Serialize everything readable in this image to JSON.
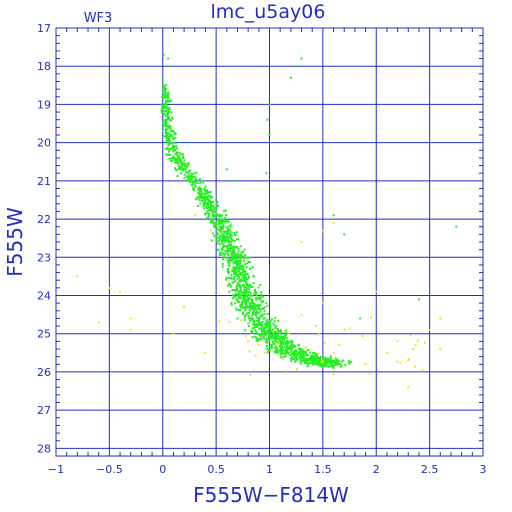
{
  "chart_data": {
    "type": "scatter",
    "title": "lmc_u5ay06",
    "corner_label": "WF3",
    "xlabel": "F555W−F814W",
    "ylabel": "F555W",
    "xlim": [
      -1,
      3
    ],
    "ylim": [
      17,
      28.2
    ],
    "y_inverted": true,
    "grid": true,
    "x_ticks": [
      -1,
      -0.5,
      0,
      0.5,
      1,
      1.5,
      2,
      2.5,
      3
    ],
    "x_tick_labels": [
      "−1",
      "−0.5",
      "0",
      "0.5",
      "1",
      "1.5",
      "2",
      "2.5",
      "3"
    ],
    "y_ticks": [
      17,
      18,
      19,
      20,
      21,
      22,
      23,
      24,
      25,
      26,
      27,
      28
    ],
    "y_tick_labels": [
      "17",
      "18",
      "19",
      "20",
      "21",
      "22",
      "23",
      "24",
      "25",
      "26",
      "27",
      "28"
    ],
    "colors": {
      "axis": "#1f2fc4",
      "grid": "#1f2fc4",
      "main": "#22ee22",
      "secondary": "#f2e020"
    },
    "series": [
      {
        "color": "#22ee22",
        "ridge": [
          [
            0.02,
            18.5
          ],
          [
            0.03,
            19.0
          ],
          [
            0.05,
            19.5
          ],
          [
            0.07,
            20.0
          ],
          [
            0.15,
            20.5
          ],
          [
            0.28,
            21.0
          ],
          [
            0.4,
            21.5
          ],
          [
            0.52,
            22.0
          ],
          [
            0.6,
            22.5
          ],
          [
            0.66,
            23.0
          ],
          [
            0.72,
            23.5
          ],
          [
            0.78,
            24.0
          ],
          [
            0.86,
            24.5
          ],
          [
            0.98,
            25.0
          ],
          [
            1.15,
            25.4
          ],
          [
            1.4,
            25.7
          ],
          [
            1.6,
            25.8
          ]
        ],
        "values": [
          [
            0.01,
            17.7
          ],
          [
            0.05,
            17.8
          ],
          [
            0.07,
            18.0
          ],
          [
            0.0,
            18.3
          ],
          [
            0.02,
            18.6
          ],
          [
            0.04,
            18.9
          ],
          [
            0.06,
            19.1
          ],
          [
            0.03,
            19.3
          ],
          [
            0.05,
            19.6
          ],
          [
            0.08,
            19.8
          ],
          [
            0.1,
            20.1
          ],
          [
            0.12,
            20.3
          ],
          [
            0.18,
            20.6
          ],
          [
            0.25,
            20.9
          ],
          [
            0.33,
            21.2
          ],
          [
            0.42,
            21.6
          ],
          [
            0.5,
            21.9
          ],
          [
            0.55,
            22.2
          ],
          [
            0.62,
            22.6
          ],
          [
            0.68,
            23.1
          ],
          [
            0.74,
            23.6
          ],
          [
            0.8,
            24.1
          ],
          [
            0.9,
            24.6
          ],
          [
            1.05,
            25.1
          ],
          [
            1.25,
            25.5
          ],
          [
            1.45,
            25.7
          ],
          [
            1.6,
            25.9
          ],
          [
            1.0,
            19.0
          ],
          [
            0.98,
            19.4
          ],
          [
            1.0,
            19.8
          ],
          [
            1.25,
            18.0
          ],
          [
            1.3,
            17.8
          ],
          [
            1.2,
            18.3
          ],
          [
            0.97,
            20.8
          ],
          [
            0.6,
            20.7
          ],
          [
            0.7,
            21.0
          ],
          [
            1.6,
            21.9
          ],
          [
            1.7,
            22.4
          ],
          [
            2.75,
            22.2
          ],
          [
            2.4,
            24.1
          ],
          [
            1.85,
            24.6
          ]
        ]
      },
      {
        "color": "#f2e020",
        "values": [
          [
            -0.8,
            23.5
          ],
          [
            -0.5,
            23.8
          ],
          [
            -0.4,
            23.9
          ],
          [
            -0.3,
            24.6
          ],
          [
            -0.3,
            24.9
          ],
          [
            0.1,
            25.0
          ],
          [
            0.2,
            24.3
          ],
          [
            0.4,
            25.5
          ],
          [
            0.8,
            25.2
          ],
          [
            1.3,
            24.5
          ],
          [
            1.5,
            24.2
          ],
          [
            1.6,
            22.1
          ],
          [
            1.5,
            22.3
          ],
          [
            1.6,
            25.5
          ],
          [
            1.9,
            25.8
          ],
          [
            2.1,
            25.5
          ],
          [
            2.2,
            25.2
          ],
          [
            2.3,
            25.7
          ],
          [
            2.5,
            24.9
          ],
          [
            2.6,
            25.4
          ],
          [
            2.3,
            26.4
          ],
          [
            2.0,
            23.9
          ],
          [
            1.3,
            22.6
          ],
          [
            0.3,
            21.9
          ],
          [
            0.15,
            20.3
          ],
          [
            0.25,
            20.6
          ],
          [
            0.2,
            20.5
          ],
          [
            0.45,
            22.3
          ],
          [
            -0.6,
            24.7
          ],
          [
            2.6,
            24.6
          ]
        ]
      }
    ]
  }
}
